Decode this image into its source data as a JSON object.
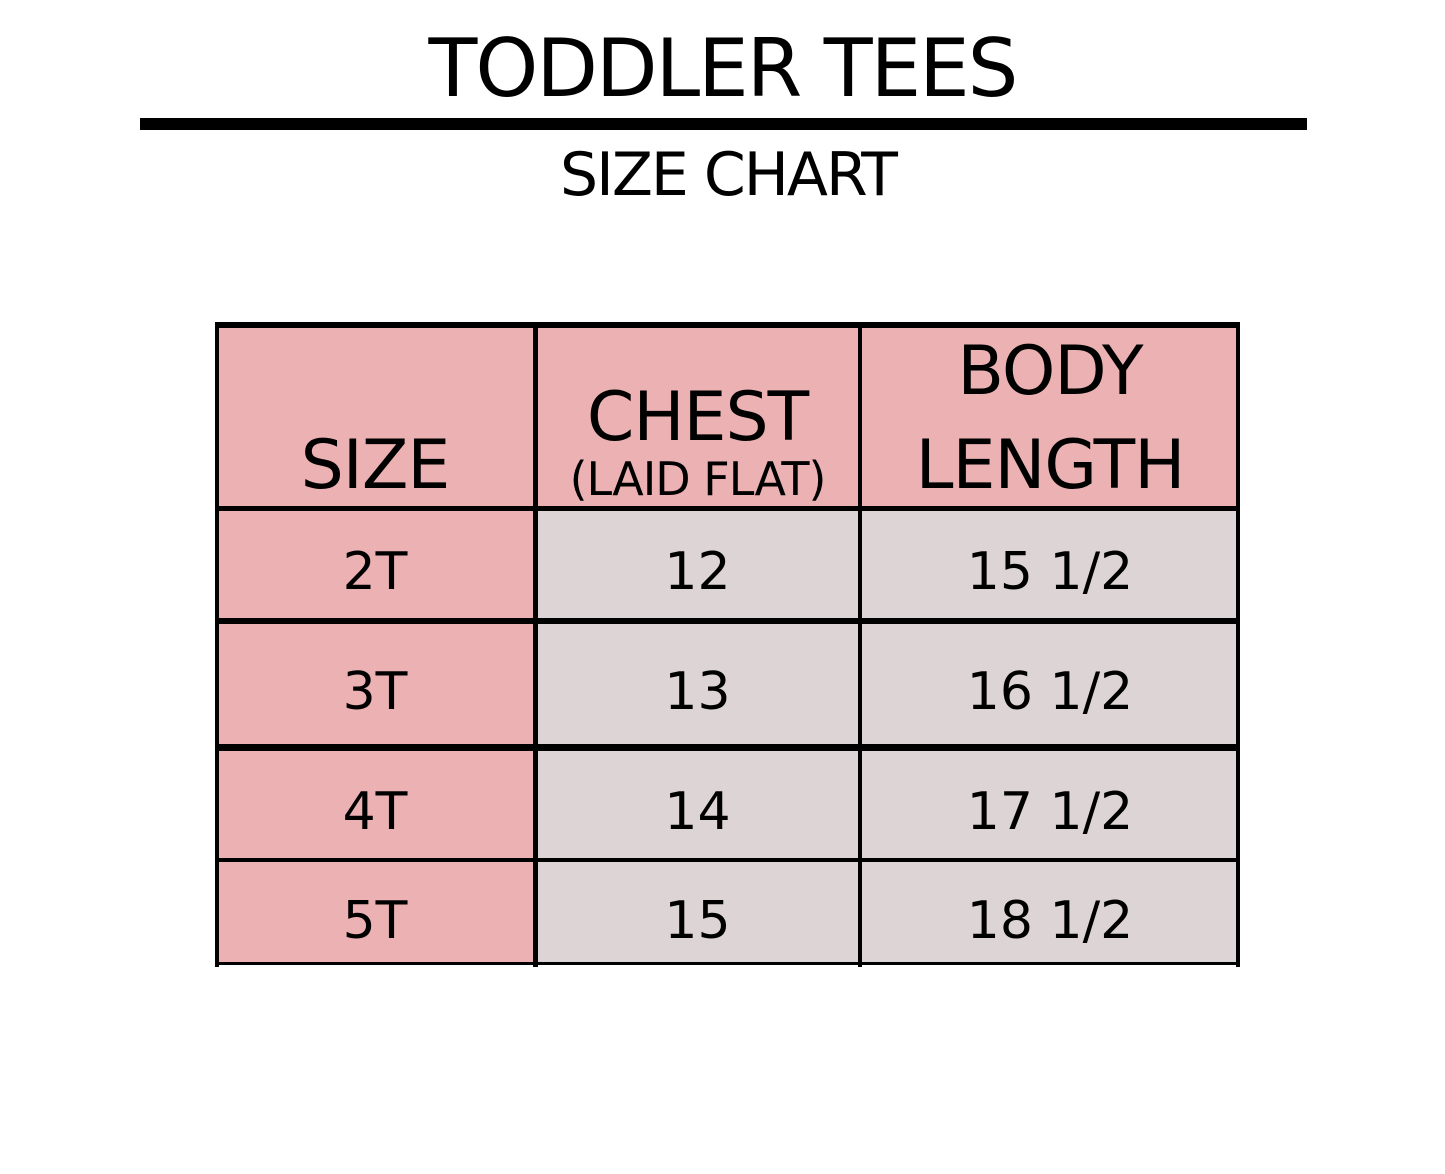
{
  "title": "TODDLER TEES",
  "subtitle": "SIZE CHART",
  "colors": {
    "header": "#ecb1b2",
    "size_column": "#ecb1b2",
    "body_cells": "#dcd4d5",
    "lines": "#000000"
  },
  "table": {
    "headers": {
      "size": "SIZE",
      "chest": "CHEST",
      "chest_note": "(LAID FLAT)",
      "body_line1": "BODY",
      "body_line2": "LENGTH"
    },
    "rows": [
      {
        "size": "2T",
        "chest": "12",
        "body_length": "15 1/2"
      },
      {
        "size": "3T",
        "chest": "13",
        "body_length": "16 1/2"
      },
      {
        "size": "4T",
        "chest": "14",
        "body_length": "17 1/2"
      },
      {
        "size": "5T",
        "chest": "15",
        "body_length": "18 1/2"
      }
    ]
  }
}
